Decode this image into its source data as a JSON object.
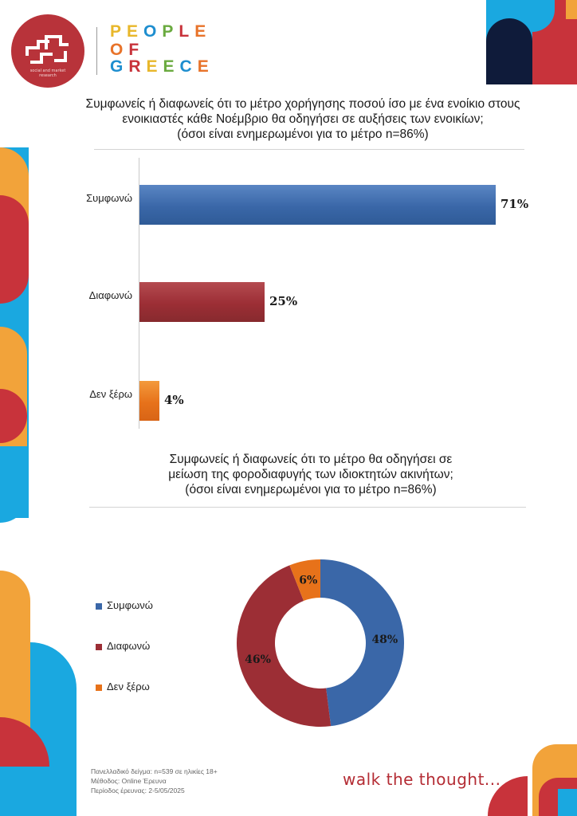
{
  "brand": {
    "line1": "PEOPLE",
    "line2": "OF",
    "line3": "GREECE",
    "logo_subtitle": "social and market research",
    "line1_colors": [
      "#e8b72b",
      "#e8b72b",
      "#1e8ecf",
      "#6aaa3f",
      "#c8333b",
      "#e8732a"
    ],
    "line2_colors": [
      "#e8732a",
      "#c8333b"
    ],
    "line3_colors": [
      "#1e8ecf",
      "#c8333b",
      "#e8b72b",
      "#6aaa3f",
      "#1e8ecf",
      "#e8732a"
    ]
  },
  "colors": {
    "accent_red": "#b8333a",
    "accent_blue": "#1aa8e0",
    "accent_orange": "#f2a33a",
    "navy": "#0f1b3a",
    "series_blue": "#3a67a8",
    "series_red": "#9c2e35",
    "series_orange": "#e7721a"
  },
  "chart1": {
    "title_line1": "Συμφωνείς ή διαφωνείς ότι το μέτρο χορήγησης ποσού ίσο με ένα ενοίκιο στους",
    "title_line2": "ενοικιαστές κάθε Νοέμβριο θα οδηγήσει σε αυξήσεις των ενοικίων;",
    "title_line3": "(όσοι είναι ενημερωμένοι για το μέτρο n=86%)"
  },
  "chart2": {
    "title_line1": "Συμφωνείς ή διαφωνείς ότι το μέτρο θα οδηγήσει σε",
    "title_line2": "μείωση της φοροδιαφυγής των ιδιοκτητών ακινήτων;",
    "title_line3": "(όσοι είναι ενημερωμένοι για το μέτρο n=86%)"
  },
  "chart_data": [
    {
      "type": "bar",
      "orientation": "horizontal",
      "title": "Συμφωνείς ή διαφωνείς ότι το μέτρο χορήγησης ποσού ίσο με ένα ενοίκιο στους ενοικιαστές κάθε Νοέμβριο θα οδηγήσει σε αυξήσεις των ενοικίων; (όσοι είναι ενημερωμένοι για το μέτρο n=86%)",
      "categories": [
        "Συμφωνώ",
        "Διαφωνώ",
        "Δεν ξέρω"
      ],
      "values": [
        71,
        25,
        4
      ],
      "value_labels": [
        "71%",
        "25%",
        "4%"
      ],
      "colors": [
        "#3a67a8",
        "#9c2e35",
        "#e7721a"
      ],
      "xlim": [
        0,
        71
      ],
      "grid": false
    },
    {
      "type": "pie",
      "variant": "donut",
      "title": "Συμφωνείς ή διαφωνείς ότι το μέτρο θα οδηγήσει σε μείωση της φοροδιαφυγής των ιδιοκτητών ακινήτων; (όσοι είναι ενημερωμένοι για το μέτρο n=86%)",
      "categories": [
        "Συμφωνώ",
        "Διαφωνώ",
        "Δεν ξέρω"
      ],
      "values": [
        48,
        46,
        6
      ],
      "value_labels": [
        "48%",
        "46%",
        "6%"
      ],
      "colors": [
        "#3a67a8",
        "#9c2e35",
        "#e7721a"
      ],
      "legend": "left"
    }
  ],
  "footer": {
    "line1": "Πανελλαδικό δείγμα: n=539 σε ηλικίες 18+",
    "line2": "Μέθοδος: Online Έρευνα",
    "line3": "Περίοδος έρευνας: 2-5/05/2025",
    "tagline": "walk the thought..."
  }
}
